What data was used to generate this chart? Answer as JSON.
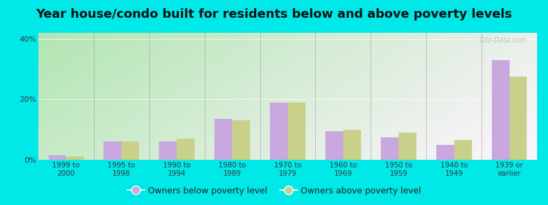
{
  "title": "Year house/condo built for residents below and above poverty levels",
  "categories": [
    "1999 to\n2000",
    "1995 to\n1998",
    "1990 to\n1994",
    "1980 to\n1989",
    "1970 to\n1979",
    "1960 to\n1969",
    "1950 to\n1959",
    "1940 to\n1949",
    "1939 or\nearlier"
  ],
  "below_poverty": [
    1.5,
    6.0,
    6.0,
    13.5,
    19.0,
    9.5,
    7.5,
    5.0,
    33.0
  ],
  "above_poverty": [
    1.2,
    6.0,
    7.0,
    13.0,
    19.0,
    10.0,
    9.0,
    6.5,
    27.5
  ],
  "below_color": "#c9a8e0",
  "above_color": "#c8d08a",
  "background_outer": "#00e8e8",
  "ylim": [
    0,
    42
  ],
  "yticks": [
    0,
    20,
    40
  ],
  "ytick_labels": [
    "0%",
    "20%",
    "40%"
  ],
  "bar_width": 0.32,
  "legend_below_label": "Owners below poverty level",
  "legend_above_label": "Owners above poverty level",
  "title_fontsize": 13,
  "tick_fontsize": 7.5,
  "legend_fontsize": 9,
  "watermark_text": "City-Data.com"
}
